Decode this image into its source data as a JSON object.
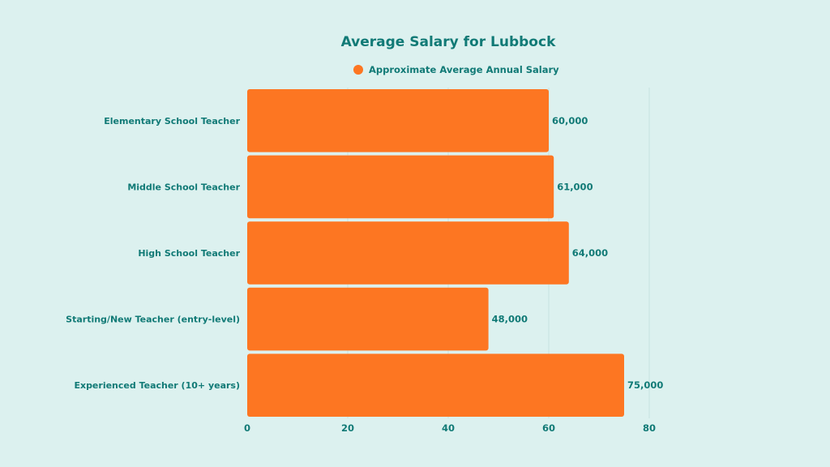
{
  "chart_data": {
    "type": "bar",
    "orientation": "horizontal",
    "title": "Average Salary for Lubbock",
    "legend": {
      "entries": [
        "Approximate Average Annual Salary"
      ],
      "placement": "top-center"
    },
    "categories": [
      "Elementary School Teacher",
      "Middle School Teacher",
      "High School Teacher",
      "Starting/New Teacher (entry-level)",
      "Experienced Teacher (10+ years)"
    ],
    "series": [
      {
        "name": "Approximate Average Annual Salary",
        "values": [
          60,
          61,
          64,
          48,
          75
        ],
        "data_labels": [
          "60,000",
          "61,000",
          "64,000",
          "48,000",
          "75,000"
        ]
      }
    ],
    "xlim": [
      0,
      80
    ],
    "x_ticks": [
      0,
      20,
      40,
      60,
      80
    ],
    "x_tick_labels": [
      "0",
      "20",
      "40",
      "60",
      "80"
    ],
    "xlabel": "",
    "ylabel": "",
    "grid": true,
    "colors": {
      "bar": "#fd7622",
      "text": "#117a76",
      "background": "#dcf1ef",
      "grid": "#c6e4e1"
    }
  }
}
